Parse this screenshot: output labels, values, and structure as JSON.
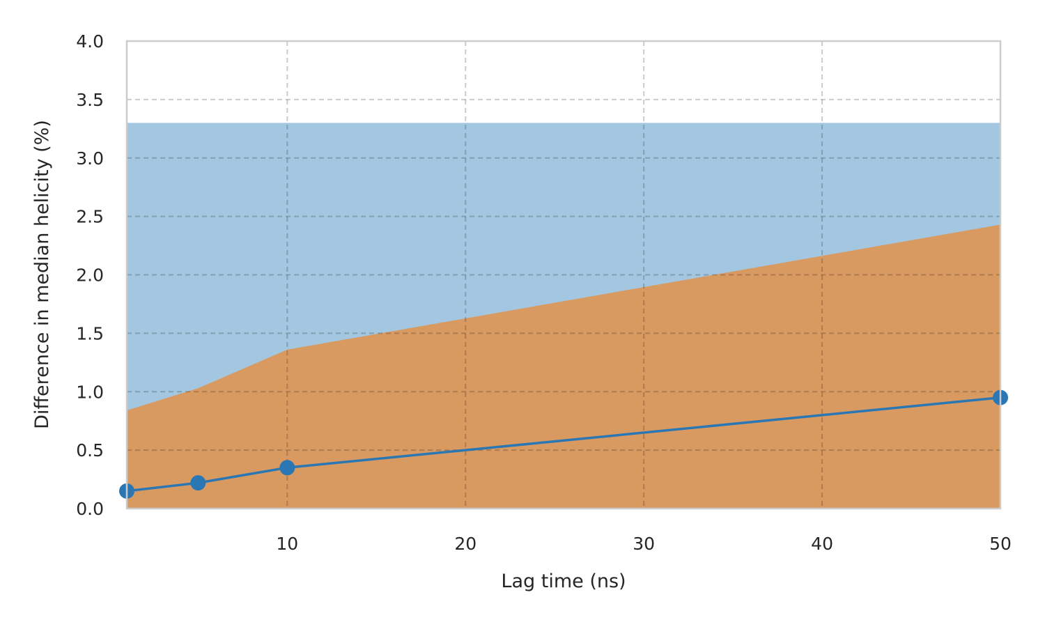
{
  "chart_data": {
    "type": "line",
    "title": "",
    "xlabel": "Lag time (ns)",
    "ylabel": "Difference in median helicity (%)",
    "xlim": [
      1,
      50
    ],
    "ylim": [
      0,
      4.0
    ],
    "x_ticks": [
      10,
      20,
      30,
      40,
      50
    ],
    "x_tick_labels": [
      "10",
      "20",
      "30",
      "40",
      "50"
    ],
    "y_ticks": [
      0,
      0.5,
      1.0,
      1.5,
      2.0,
      2.5,
      3.0,
      3.5,
      4.0
    ],
    "y_tick_labels": [
      "0.0",
      "0.5",
      "1.0",
      "1.5",
      "2.0",
      "2.5",
      "3.0",
      "3.5",
      "4.0"
    ],
    "grid": true,
    "legend": "none",
    "areas": [
      {
        "color": "#a3c7e0",
        "x": [
          1,
          50
        ],
        "y": [
          3.3,
          3.3
        ]
      },
      {
        "color": "#d99a62",
        "x": [
          1,
          5,
          10,
          50
        ],
        "y": [
          0.84,
          1.03,
          1.36,
          2.43
        ]
      }
    ],
    "series": [
      {
        "color": "#2a77b4",
        "x": [
          1,
          5,
          10,
          50
        ],
        "y": [
          0.15,
          0.22,
          0.35,
          0.95
        ]
      }
    ]
  }
}
